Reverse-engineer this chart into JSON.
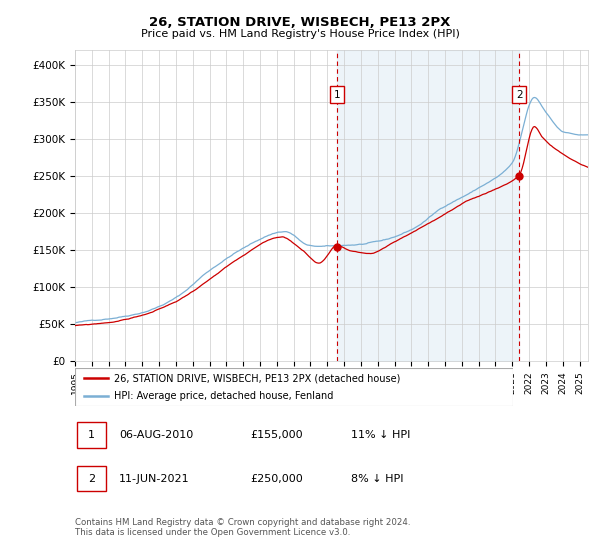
{
  "title": "26, STATION DRIVE, WISBECH, PE13 2PX",
  "subtitle": "Price paid vs. HM Land Registry's House Price Index (HPI)",
  "ylabel_ticks": [
    "£0",
    "£50K",
    "£100K",
    "£150K",
    "£200K",
    "£250K",
    "£300K",
    "£350K",
    "£400K"
  ],
  "ytick_values": [
    0,
    50000,
    100000,
    150000,
    200000,
    250000,
    300000,
    350000,
    400000
  ],
  "ylim": [
    0,
    420000
  ],
  "xlim_start": 1995.25,
  "xlim_end": 2025.5,
  "hpi_color": "#7bafd4",
  "hpi_fill_color": "#ddeaf5",
  "price_color": "#cc0000",
  "vline_color": "#cc0000",
  "marker1_date": 2010.58,
  "marker2_date": 2021.42,
  "legend_line1": "26, STATION DRIVE, WISBECH, PE13 2PX (detached house)",
  "legend_line2": "HPI: Average price, detached house, Fenland",
  "table_row1": [
    "1",
    "06-AUG-2010",
    "£155,000",
    "11% ↓ HPI"
  ],
  "table_row2": [
    "2",
    "11-JUN-2021",
    "£250,000",
    "8% ↓ HPI"
  ],
  "footnote": "Contains HM Land Registry data © Crown copyright and database right 2024.\nThis data is licensed under the Open Government Licence v3.0.",
  "background_color": "#ffffff",
  "grid_color": "#cccccc",
  "chart_bg": "#f0f4fa"
}
